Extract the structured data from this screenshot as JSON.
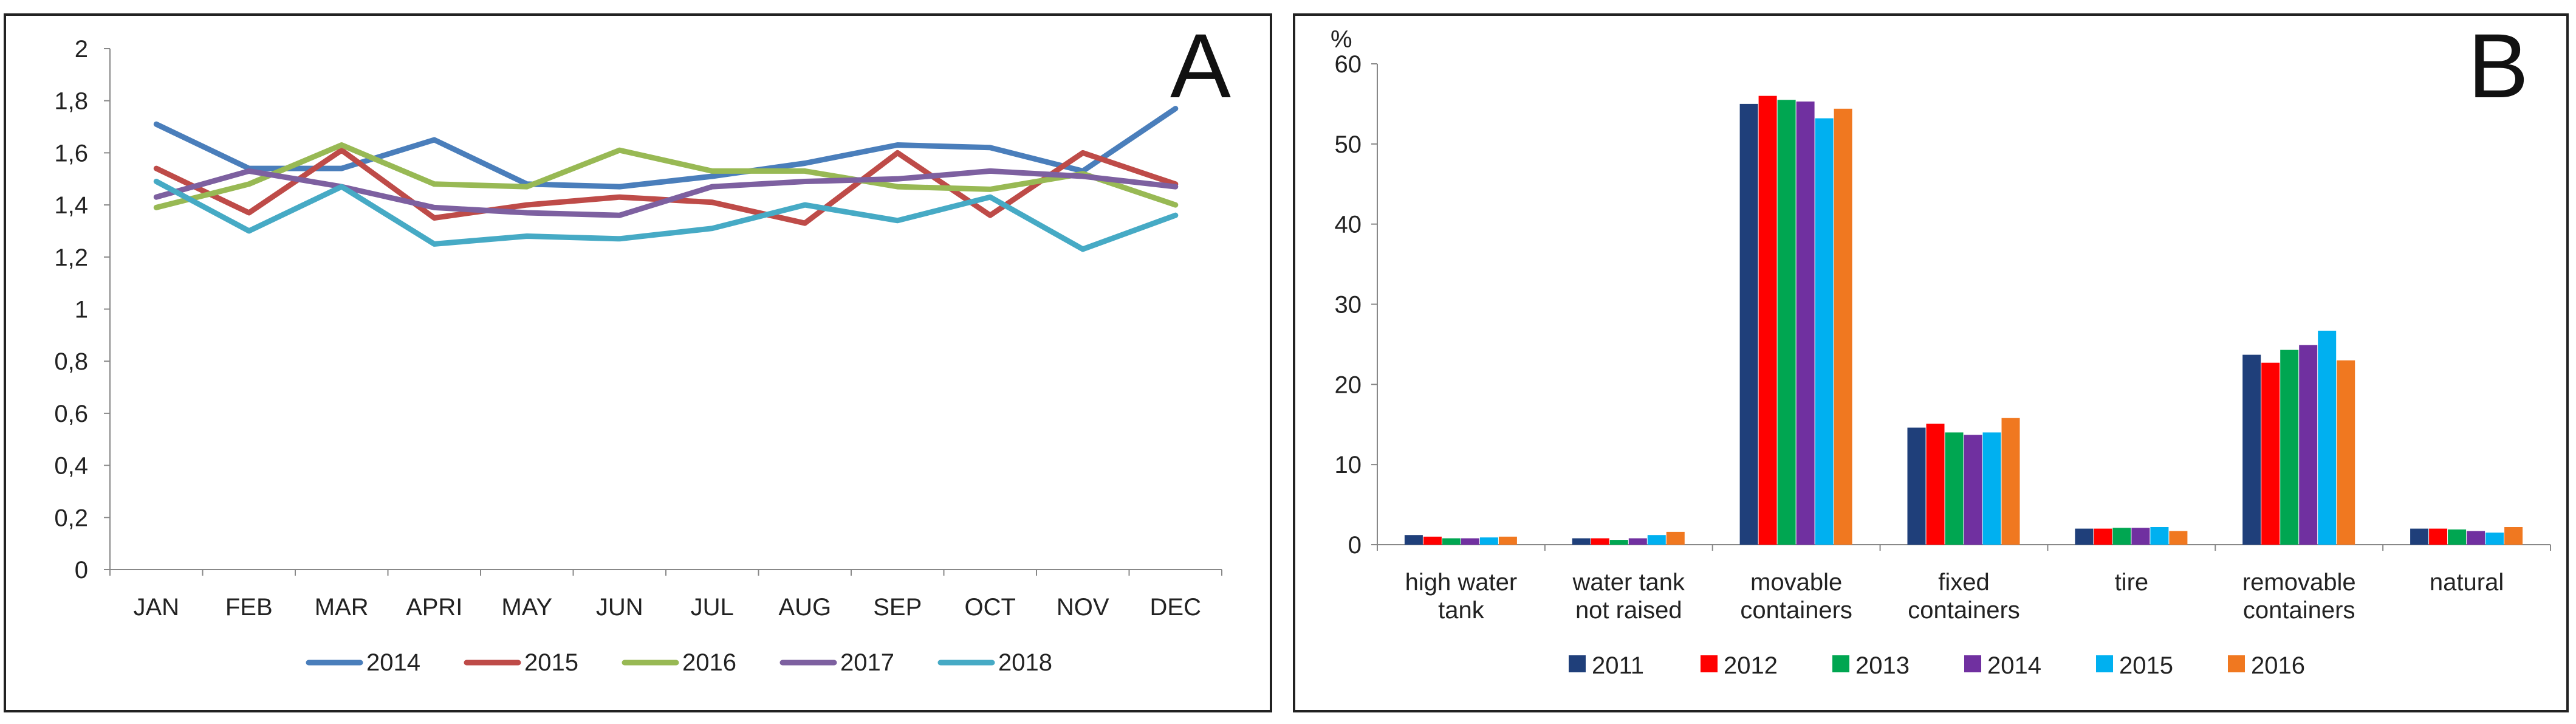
{
  "chart_data": [
    {
      "type": "line",
      "panel_label": "A",
      "title": "",
      "xlabel": "",
      "ylabel": "",
      "categories": [
        "JAN",
        "FEB",
        "MAR",
        "APRI",
        "MAY",
        "JUN",
        "JUL",
        "AUG",
        "SEP",
        "OCT",
        "NOV",
        "DEC"
      ],
      "ylim": [
        0,
        2
      ],
      "yticks": [
        "0",
        "0,2",
        "0,4",
        "0,6",
        "0,8",
        "1",
        "1,2",
        "1,4",
        "1,6",
        "1,8",
        "2"
      ],
      "grid": false,
      "legend_position": "bottom",
      "series": [
        {
          "name": "2014",
          "color": "#4a7ebb",
          "values": [
            1.71,
            1.54,
            1.54,
            1.65,
            1.48,
            1.47,
            1.51,
            1.56,
            1.63,
            1.62,
            1.53,
            1.77
          ]
        },
        {
          "name": "2015",
          "color": "#be4b48",
          "values": [
            1.54,
            1.37,
            1.61,
            1.35,
            1.4,
            1.43,
            1.41,
            1.33,
            1.6,
            1.36,
            1.6,
            1.48
          ]
        },
        {
          "name": "2016",
          "color": "#98b954",
          "values": [
            1.39,
            1.48,
            1.63,
            1.48,
            1.47,
            1.61,
            1.53,
            1.53,
            1.47,
            1.46,
            1.52,
            1.4
          ]
        },
        {
          "name": "2017",
          "color": "#7d60a0",
          "values": [
            1.43,
            1.53,
            1.47,
            1.39,
            1.37,
            1.36,
            1.47,
            1.49,
            1.5,
            1.53,
            1.51,
            1.47
          ]
        },
        {
          "name": "2018",
          "color": "#46aac5",
          "values": [
            1.49,
            1.3,
            1.47,
            1.25,
            1.28,
            1.27,
            1.31,
            1.4,
            1.34,
            1.43,
            1.23,
            1.36
          ]
        }
      ]
    },
    {
      "type": "bar",
      "panel_label": "B",
      "title": "",
      "xlabel": "",
      "ylabel": "%",
      "categories": [
        [
          "high water",
          "tank"
        ],
        [
          "water tank",
          "not raised"
        ],
        [
          "movable",
          "containers"
        ],
        [
          "fixed",
          "containers"
        ],
        [
          "tire"
        ],
        [
          "removable",
          "containers"
        ],
        [
          "natural"
        ]
      ],
      "ylim": [
        0,
        60
      ],
      "yticks": [
        "0",
        "10",
        "20",
        "30",
        "40",
        "50",
        "60"
      ],
      "grid": false,
      "legend_position": "bottom",
      "series": [
        {
          "name": "2011",
          "color": "#1f3f7a",
          "values": [
            1.2,
            0.8,
            55.0,
            14.6,
            2.0,
            23.7,
            2.0
          ]
        },
        {
          "name": "2012",
          "color": "#ff0000",
          "values": [
            1.0,
            0.8,
            56.0,
            15.1,
            2.0,
            22.7,
            2.0
          ]
        },
        {
          "name": "2013",
          "color": "#00a651",
          "values": [
            0.8,
            0.6,
            55.5,
            14.0,
            2.1,
            24.3,
            1.9
          ]
        },
        {
          "name": "2014",
          "color": "#7030a0",
          "values": [
            0.8,
            0.8,
            55.3,
            13.7,
            2.1,
            24.9,
            1.7
          ]
        },
        {
          "name": "2015",
          "color": "#00b0f0",
          "values": [
            0.9,
            1.2,
            53.2,
            14.0,
            2.2,
            26.7,
            1.5
          ]
        },
        {
          "name": "2016",
          "color": "#f07820",
          "values": [
            1.0,
            1.6,
            54.4,
            15.8,
            1.7,
            23.0,
            2.2
          ]
        }
      ]
    }
  ]
}
